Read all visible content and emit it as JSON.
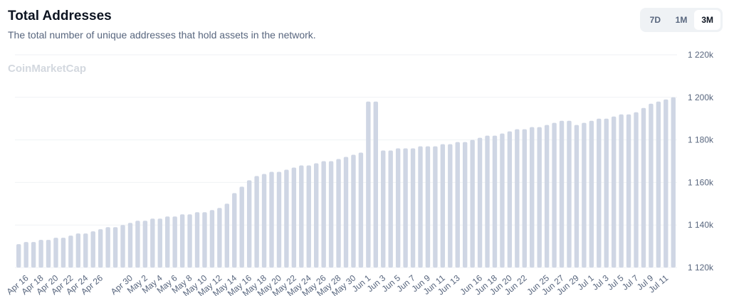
{
  "header": {
    "title": "Total Addresses",
    "subtitle": "The total number of unique addresses that hold assets in the network.",
    "ranges": [
      "7D",
      "1M",
      "3M"
    ],
    "active_range": "3M",
    "watermark": "CoinMarketCap"
  },
  "chart_data": {
    "type": "bar",
    "color": "#cfd6e4",
    "categories": [
      null,
      "Apr 16",
      null,
      "Apr 18",
      null,
      "Apr 20",
      null,
      "Apr 22",
      null,
      "Apr 24",
      null,
      "Apr 26",
      null,
      null,
      null,
      "Apr 30",
      null,
      "May 2",
      null,
      "May 4",
      null,
      "May 6",
      null,
      "May 8",
      null,
      "May 10",
      null,
      "May 12",
      null,
      "May 14",
      null,
      "May 16",
      null,
      "May 18",
      null,
      "May 20",
      null,
      "May 22",
      null,
      "May 24",
      null,
      "May 26",
      null,
      "May 28",
      null,
      "May 30",
      null,
      "Jun 1",
      null,
      "Jun 3",
      null,
      "Jun 5",
      null,
      "Jun 7",
      null,
      "Jun 9",
      null,
      "Jun 11",
      null,
      "Jun 13",
      null,
      null,
      "Jun 16",
      null,
      "Jun 18",
      null,
      "Jun 20",
      null,
      "Jun 22",
      null,
      null,
      "Jun 25",
      null,
      "Jun 27",
      null,
      "Jun 29",
      null,
      "Jul 1",
      null,
      "Jul 3",
      null,
      "Jul 5",
      null,
      "Jul 7",
      null,
      "Jul 9",
      null,
      "Jul 11",
      null
    ],
    "values": [
      1131,
      1132,
      1132,
      1133,
      1133,
      1134,
      1134,
      1135,
      1136,
      1136,
      1137,
      1138,
      1139,
      1139,
      1140,
      1141,
      1142,
      1142,
      1143,
      1143,
      1144,
      1144,
      1145,
      1145,
      1146,
      1146,
      1147,
      1148,
      1150,
      1155,
      1158,
      1161,
      1163,
      1164,
      1165,
      1165,
      1166,
      1167,
      1168,
      1168,
      1169,
      1170,
      1170,
      1171,
      1172,
      1173,
      1174,
      1198,
      1198,
      1175,
      1175,
      1176,
      1176,
      1176,
      1177,
      1177,
      1177,
      1178,
      1178,
      1179,
      1179,
      1180,
      1181,
      1182,
      1182,
      1183,
      1184,
      1185,
      1185,
      1186,
      1186,
      1187,
      1188,
      1189,
      1189,
      1187,
      1188,
      1189,
      1190,
      1190,
      1191,
      1192,
      1192,
      1193,
      1195,
      1197,
      1198,
      1199,
      1200
    ],
    "ylim": [
      1120,
      1220
    ],
    "yticks": [
      {
        "value": 1120,
        "label": "1 120k"
      },
      {
        "value": 1140,
        "label": "1 140k"
      },
      {
        "value": 1160,
        "label": "1 160k"
      },
      {
        "value": 1180,
        "label": "1 180k"
      },
      {
        "value": 1200,
        "label": "1 200k"
      },
      {
        "value": 1220,
        "label": "1 220k"
      }
    ],
    "grid": true
  }
}
